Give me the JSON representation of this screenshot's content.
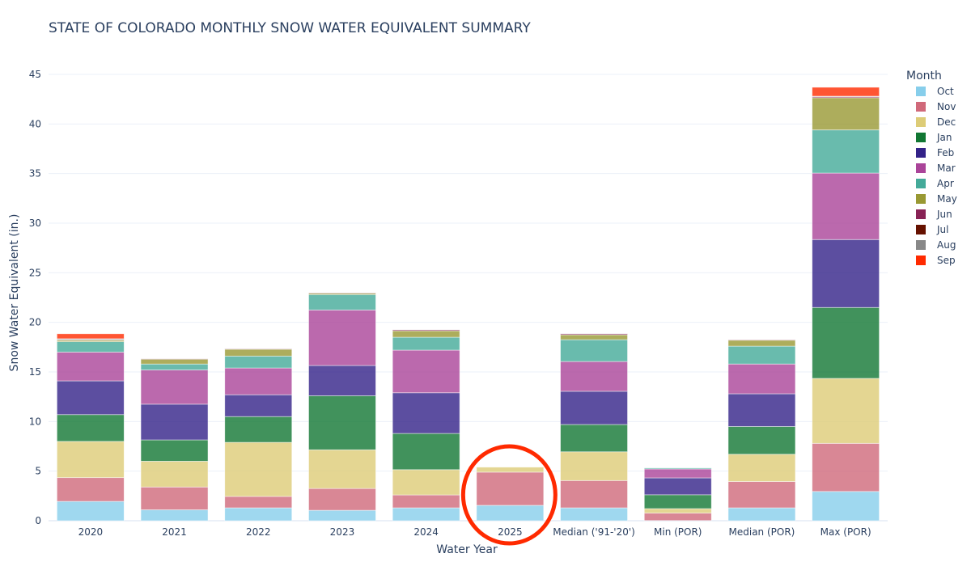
{
  "chart_data": {
    "type": "bar",
    "barmode": "stack",
    "title": "STATE OF COLORADO MONTHLY SNOW WATER EQUIVALENT SUMMARY",
    "xlabel": "Water Year",
    "ylabel": "Snow Water Equivalent (in.)",
    "ylim": [
      0,
      45
    ],
    "yticks": [
      0,
      5,
      10,
      15,
      20,
      25,
      30,
      35,
      40,
      45
    ],
    "grid": true,
    "legend": {
      "title": "Month",
      "placement": "right"
    },
    "categories": [
      "2020",
      "2021",
      "2022",
      "2023",
      "2024",
      "2025",
      "Median ('91-'20')",
      "Min (POR)",
      "Median (POR)",
      "Max (POR)"
    ],
    "series": [
      {
        "name": "Oct",
        "color": "#87ceeb",
        "values": [
          1.95,
          1.1,
          1.3,
          1.05,
          1.3,
          1.55,
          1.3,
          0.02,
          1.3,
          2.95
        ]
      },
      {
        "name": "Nov",
        "color": "#d0697a",
        "values": [
          2.4,
          2.3,
          1.15,
          2.2,
          1.3,
          3.35,
          2.75,
          0.75,
          2.65,
          4.85
        ]
      },
      {
        "name": "Dec",
        "color": "#ddcc77",
        "values": [
          3.65,
          2.6,
          5.45,
          3.9,
          2.55,
          0.5,
          2.9,
          0.45,
          2.75,
          6.55
        ]
      },
      {
        "name": "Jan",
        "color": "#117733",
        "values": [
          2.7,
          2.15,
          2.6,
          5.45,
          3.65,
          0,
          2.75,
          1.4,
          2.8,
          7.15
        ]
      },
      {
        "name": "Feb",
        "color": "#332288",
        "values": [
          3.4,
          3.6,
          2.2,
          3.05,
          4.1,
          0,
          3.35,
          1.7,
          3.3,
          6.85
        ]
      },
      {
        "name": "Mar",
        "color": "#aa4499",
        "values": [
          2.9,
          3.45,
          2.7,
          5.6,
          4.3,
          0,
          3.0,
          0.9,
          3.0,
          6.7
        ]
      },
      {
        "name": "Apr",
        "color": "#44aa99",
        "values": [
          1.05,
          0.6,
          1.2,
          1.55,
          1.3,
          0,
          2.2,
          0.1,
          1.8,
          4.35
        ]
      },
      {
        "name": "May",
        "color": "#999933",
        "values": [
          0.15,
          0.5,
          0.7,
          0.15,
          0.65,
          0,
          0.5,
          0,
          0.6,
          3.25
        ]
      },
      {
        "name": "Jun",
        "color": "#882255",
        "values": [
          0.05,
          0.02,
          0.02,
          0.02,
          0.1,
          0,
          0.1,
          0,
          0.05,
          0.1
        ]
      },
      {
        "name": "Jul",
        "color": "#661100",
        "values": [
          0,
          0,
          0,
          0,
          0,
          0,
          0,
          0,
          0,
          0
        ]
      },
      {
        "name": "Aug",
        "color": "#888888",
        "values": [
          0.1,
          0,
          0,
          0,
          0,
          0,
          0,
          0,
          0,
          0.05
        ]
      },
      {
        "name": "Sep",
        "color": "#ff2a00",
        "values": [
          0.5,
          0,
          0,
          0,
          0,
          0,
          0,
          0,
          0,
          0.9
        ]
      }
    ],
    "annotations": [
      {
        "type": "circle",
        "target_category": "2025",
        "color": "#ff2a00"
      }
    ]
  }
}
